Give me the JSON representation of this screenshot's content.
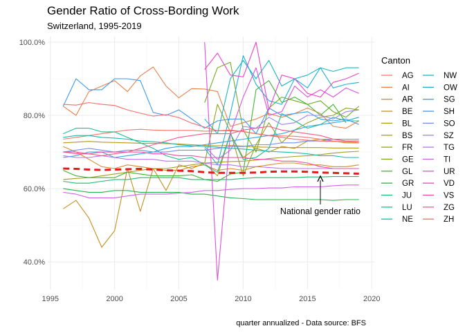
{
  "chart_data": {
    "type": "line",
    "title": "Gender Ratio of Cross-Bording Work",
    "subtitle": "Switzerland, 1995-2019",
    "caption": "quarter annualized - Data source: BFS",
    "legend_title": "Canton",
    "legend_position": "right",
    "grid": true,
    "xlim": [
      1994.8,
      2020.2
    ],
    "ylim": [
      32.5,
      101.5
    ],
    "x_ticks": [
      1995,
      2000,
      2005,
      2010,
      2015,
      2020
    ],
    "x_tick_labels": [
      "1995",
      "2000",
      "2005",
      "2010",
      "2015",
      "2020"
    ],
    "y_ticks": [
      40,
      60,
      80,
      100
    ],
    "y_tick_labels": [
      "40.0%",
      "60.0%",
      "80.0%",
      "100.0%"
    ],
    "annotation": {
      "text": "National gender ratio",
      "x": 2016,
      "y": 64.0
    },
    "national": {
      "x": [
        1996,
        1997,
        1998,
        1999,
        2000,
        2001,
        2002,
        2003,
        2004,
        2005,
        2006,
        2007,
        2008,
        2009,
        2010,
        2011,
        2012,
        2013,
        2014,
        2015,
        2016,
        2017,
        2018,
        2019
      ],
      "values": [
        65.5,
        65.4,
        65.2,
        65.1,
        65.2,
        65.3,
        65.4,
        65.2,
        65.0,
        64.9,
        64.8,
        64.5,
        64.3,
        64.3,
        64.3,
        64.4,
        64.6,
        64.7,
        64.7,
        64.6,
        64.4,
        64.3,
        64.2,
        64.1
      ],
      "color": "#e41a1c"
    },
    "series": [
      {
        "name": "AG",
        "color": "#f8766d",
        "start": 1996,
        "values": [
          73.5,
          74.0,
          74.5,
          75.0,
          75.5,
          76.0,
          76.2,
          76.0,
          75.9,
          75.9,
          75.9,
          75.7,
          75.8,
          75.8,
          75.6,
          75.0,
          74.5,
          74.4,
          74.3,
          74.0,
          73.5,
          73.5,
          73.0,
          73.0
        ]
      },
      {
        "name": "AI",
        "color": "#e8804b",
        "start": 1996,
        "values": [
          82.5,
          80.0,
          86.5,
          88.0,
          89.5,
          86.5,
          90.8,
          93.2,
          88.0,
          84.8,
          87.3,
          87.2,
          86.5,
          77.0,
          78.0,
          79.0,
          80.5,
          79.5,
          80.5,
          82.0,
          80.5,
          77.0,
          76.5,
          78.5
        ]
      },
      {
        "name": "AR",
        "color": "#d88a2b",
        "start": 1996,
        "values": [
          71.5,
          70.0,
          68.0,
          66.0,
          65.5,
          66.5,
          66.0,
          65.5,
          65.0,
          65.0,
          66.0,
          66.5,
          65.0,
          65.5,
          65.0,
          66.0,
          66.5,
          67.0,
          67.0,
          66.5,
          66.5,
          66.0,
          66.0,
          66.5
        ]
      },
      {
        "name": "BE",
        "color": "#c58f1d",
        "start": 1996,
        "values": [
          54.5,
          56.8,
          52.0,
          44.0,
          48.5,
          65.5,
          53.8,
          65.5,
          59.5,
          66.5,
          65.5,
          67.0,
          63.5,
          75.0,
          68.5,
          71.0,
          70.0,
          71.5,
          71.0,
          73.0,
          73.5,
          73.0,
          72.5,
          72.5
        ]
      },
      {
        "name": "BL",
        "color": "#b7951a",
        "start": 1996,
        "values": [
          72.5,
          72.7,
          72.9,
          72.7,
          72.6,
          72.5,
          72.4,
          72.4,
          72.3,
          72.2,
          72.0,
          71.8,
          71.7,
          71.8,
          71.6,
          71.4,
          71.3,
          71.2,
          71.2,
          71.2,
          71.2,
          71.1,
          71.1,
          71.1
        ]
      },
      {
        "name": "BS",
        "color": "#a79b1f",
        "start": 1996,
        "values": [
          62.5,
          62.8,
          63.0,
          63.5,
          64.0,
          64.5,
          65.0,
          65.5,
          65.5,
          66.0,
          66.5,
          67.0,
          67.2,
          67.4,
          67.5,
          67.8,
          68.2,
          68.5,
          68.8,
          69.0,
          69.3,
          69.7,
          70.0,
          70.2
        ]
      },
      {
        "name": "FR",
        "color": "#92a21e",
        "start": 2007,
        "values": [
          67.0,
          83.0,
          75.5,
          63.5,
          72.0,
          78.0,
          72.5,
          76.0,
          78.0,
          79.5,
          80.0,
          82.0,
          81.5
        ]
      },
      {
        "name": "GE",
        "color": "#72ac1e",
        "start": 2007,
        "values": [
          83.5,
          93.0,
          94.5,
          76.0,
          70.0,
          82.0,
          85.0,
          84.0,
          83.0,
          84.0,
          81.0,
          79.5,
          82.5
        ]
      },
      {
        "name": "GL",
        "color": "#3fb42c",
        "start": 1996,
        "values": [
          65.0,
          63.5,
          63.0,
          63.0,
          63.0,
          64.5,
          64.0,
          63.5,
          63.5,
          63.5,
          63.8,
          62.5,
          62.0,
          64.0,
          64.5,
          87.0,
          89.5,
          83.5,
          85.0,
          83.0,
          80.0,
          83.0,
          78.0,
          null
        ]
      },
      {
        "name": "GR",
        "color": "#1cb848",
        "start": 1996,
        "values": [
          60.0,
          59.5,
          59.0,
          59.0,
          59.5,
          59.5,
          59.0,
          59.0,
          59.0,
          59.0,
          58.5,
          58.5,
          58.0,
          57.5,
          57.3,
          57.0,
          57.0,
          57.0,
          57.0,
          57.0,
          57.0,
          56.8,
          57.0,
          57.0
        ]
      },
      {
        "name": "JU",
        "color": "#1cbc6c",
        "start": 1996,
        "values": [
          62.0,
          61.5,
          61.5,
          62.0,
          62.5,
          62.5,
          63.0,
          63.0,
          63.0,
          63.0,
          62.5,
          62.5,
          62.5,
          62.5,
          62.8,
          63.0,
          63.0,
          63.0,
          63.0,
          63.2,
          63.2,
          63.3,
          63.3,
          63.3
        ]
      },
      {
        "name": "LU",
        "color": "#19bd8f",
        "start": 1996,
        "values": [
          75.0,
          76.5,
          76.5,
          75.5,
          75.5,
          74.0,
          72.5,
          71.0,
          69.0,
          68.0,
          68.5,
          66.5,
          64.5,
          75.0,
          68.0,
          68.5,
          71.0,
          80.5,
          78.5,
          76.5,
          77.5,
          79.5,
          78.5,
          78.5
        ]
      },
      {
        "name": "NE",
        "color": "#13bbaf",
        "start": 1996,
        "values": [
          74.0,
          74.5,
          74.5,
          74.0,
          73.8,
          73.5,
          73.0,
          72.8,
          72.5,
          72.0,
          71.7,
          71.5,
          71.3,
          71.0,
          70.8,
          70.5,
          70.2,
          70.0,
          69.8,
          69.5,
          69.0,
          69.0,
          68.5,
          68.5
        ]
      },
      {
        "name": "NW",
        "color": "#14b7c4",
        "start": 2007,
        "values": [
          79.0,
          75.0,
          90.0,
          95.0,
          90.0,
          95.0,
          88.0,
          90.0,
          91.0,
          93.0,
          92.0,
          93.0,
          93.0
        ]
      },
      {
        "name": "OW",
        "color": "#1cb0d8",
        "start": 2007,
        "values": [
          71.0,
          66.5,
          80.5,
          96.3,
          88.5,
          84.0,
          83.0,
          90.0,
          87.5,
          93.0,
          87.5,
          88.5,
          89.0
        ]
      },
      {
        "name": "SG",
        "color": "#26a8e2",
        "start": 1996,
        "values": [
          68.5,
          69.0,
          70.0,
          70.0,
          68.5,
          69.0,
          69.5,
          70.0,
          71.0,
          71.5,
          71.5,
          72.0,
          72.5,
          73.0,
          73.5,
          74.0,
          74.5,
          75.0,
          76.0,
          77.0,
          77.5,
          78.0,
          78.5,
          79.5
        ]
      },
      {
        "name": "SH",
        "color": "#3a9aec",
        "start": 1996,
        "values": [
          82.5,
          90.0,
          87.0,
          87.0,
          90.0,
          90.0,
          89.5,
          80.8,
          80.0,
          81.5,
          79.0,
          76.5,
          78.5,
          79.0,
          79.0,
          75.0,
          82.0,
          80.0,
          80.5,
          81.0,
          79.0,
          78.5,
          79.0,
          77.5
        ]
      },
      {
        "name": "SO",
        "color": "#6f8cf3",
        "start": 1996,
        "values": [
          70.0,
          70.5,
          71.0,
          70.5,
          70.0,
          70.5,
          70.5,
          70.0,
          70.0,
          70.5,
          70.5,
          70.5,
          71.0,
          71.5,
          71.5,
          72.0,
          72.0,
          72.5,
          72.5,
          73.0,
          73.0,
          73.5,
          73.5,
          73.5
        ]
      },
      {
        "name": "SZ",
        "color": "#9a7ff6",
        "start": 2007,
        "values": [
          71.5,
          68.0,
          70.5,
          77.0,
          76.5,
          79.5,
          77.5,
          78.0,
          80.0,
          80.0,
          79.0,
          81.0,
          81.5
        ]
      },
      {
        "name": "TG",
        "color": "#b873f1",
        "start": 1996,
        "values": [
          69.0,
          68.5,
          68.5,
          69.0,
          68.5,
          68.0,
          68.0,
          68.0,
          67.5,
          67.5,
          67.5,
          67.0,
          66.5,
          66.5,
          66.0,
          66.0,
          65.8,
          65.5,
          65.5,
          65.5,
          65.5,
          65.5,
          65.5,
          65.5
        ]
      },
      {
        "name": "TI",
        "color": "#d060e8",
        "start": 1996,
        "values": [
          59.0,
          58.5,
          57.5,
          57.5,
          57.5,
          58.0,
          58.5,
          58.5,
          58.5,
          58.8,
          59.0,
          59.5,
          59.5,
          59.8,
          60.0,
          60.0,
          60.2,
          60.2,
          60.5,
          60.5,
          60.5,
          60.8,
          61.0,
          61.0
        ]
      },
      {
        "name": "UR",
        "color": "#e14ddb",
        "start": 2007,
        "values": [
          100.0,
          35.0,
          75.0,
          85.0,
          93.0,
          80.0,
          81.0,
          88.0,
          85.0,
          87.0,
          85.0,
          87.5,
          86.0
        ]
      },
      {
        "name": "VD",
        "color": "#ee42c6",
        "start": 2007,
        "values": [
          92.5,
          97.0,
          91.0,
          90.5,
          100.0,
          81.5,
          91.0,
          90.0,
          86.0,
          85.0,
          89.0,
          90.0,
          91.5
        ]
      },
      {
        "name": "VS",
        "color": "#f847a5",
        "start": 1996,
        "values": [
          70.0,
          70.0,
          69.5,
          70.0,
          70.0,
          70.0,
          70.0,
          69.5,
          69.5,
          69.0,
          69.0,
          68.5,
          68.5,
          68.5,
          68.5,
          68.0,
          68.0,
          67.5,
          67.5,
          67.0,
          66.0,
          65.5,
          65.5,
          65.5
        ]
      },
      {
        "name": "ZG",
        "color": "#fb5585",
        "start": 1996,
        "values": [
          70.0,
          69.5,
          69.5,
          69.0,
          69.5,
          70.0,
          71.0,
          72.0,
          73.0,
          74.0,
          74.5,
          75.0,
          75.0,
          75.0,
          76.0,
          76.5,
          77.0,
          76.0,
          75.5,
          75.0,
          74.5,
          73.5,
          73.0,
          73.0
        ]
      },
      {
        "name": "ZH",
        "color": "#f86968",
        "start": 1996,
        "values": [
          83.0,
          82.8,
          83.5,
          83.0,
          82.7,
          81.5,
          80.6,
          79.8,
          80.2,
          79.4,
          77.9,
          76.8,
          75.8,
          76.0,
          75.6,
          75.0,
          74.5,
          74.0,
          73.5,
          73.2,
          73.0,
          72.9,
          72.8,
          72.6
        ]
      }
    ]
  }
}
